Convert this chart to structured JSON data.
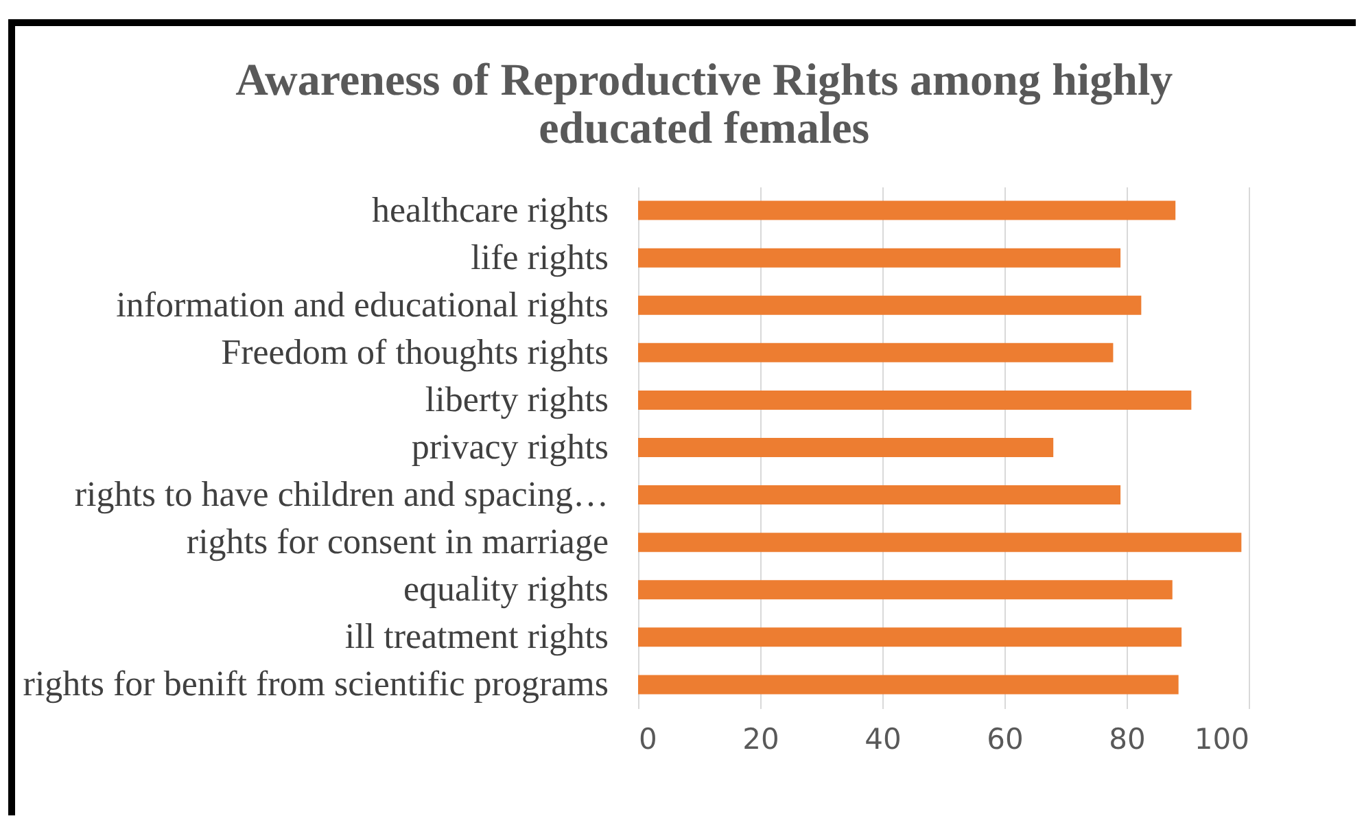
{
  "chart_data": {
    "type": "bar",
    "orientation": "horizontal",
    "title": "Awareness of Reproductive Rights among highly educated females",
    "categories": [
      "healthcare rights",
      "life rights",
      "information and educational rights",
      "Freedom of thoughts rights",
      "liberty rights",
      "privacy rights",
      "rights to have children and spacing…",
      "rights for consent in marriage",
      "equality rights",
      "ill treatment rights",
      "rights for benift from scientific programs"
    ],
    "values": [
      88,
      79,
      82.4,
      77.8,
      90.6,
      68,
      79,
      98.8,
      87.5,
      89,
      88.5
    ],
    "color": "#ed7d31",
    "xlim": [
      0,
      100
    ],
    "xticks": [
      0,
      20,
      40,
      60,
      80,
      100
    ],
    "grid": "x"
  }
}
